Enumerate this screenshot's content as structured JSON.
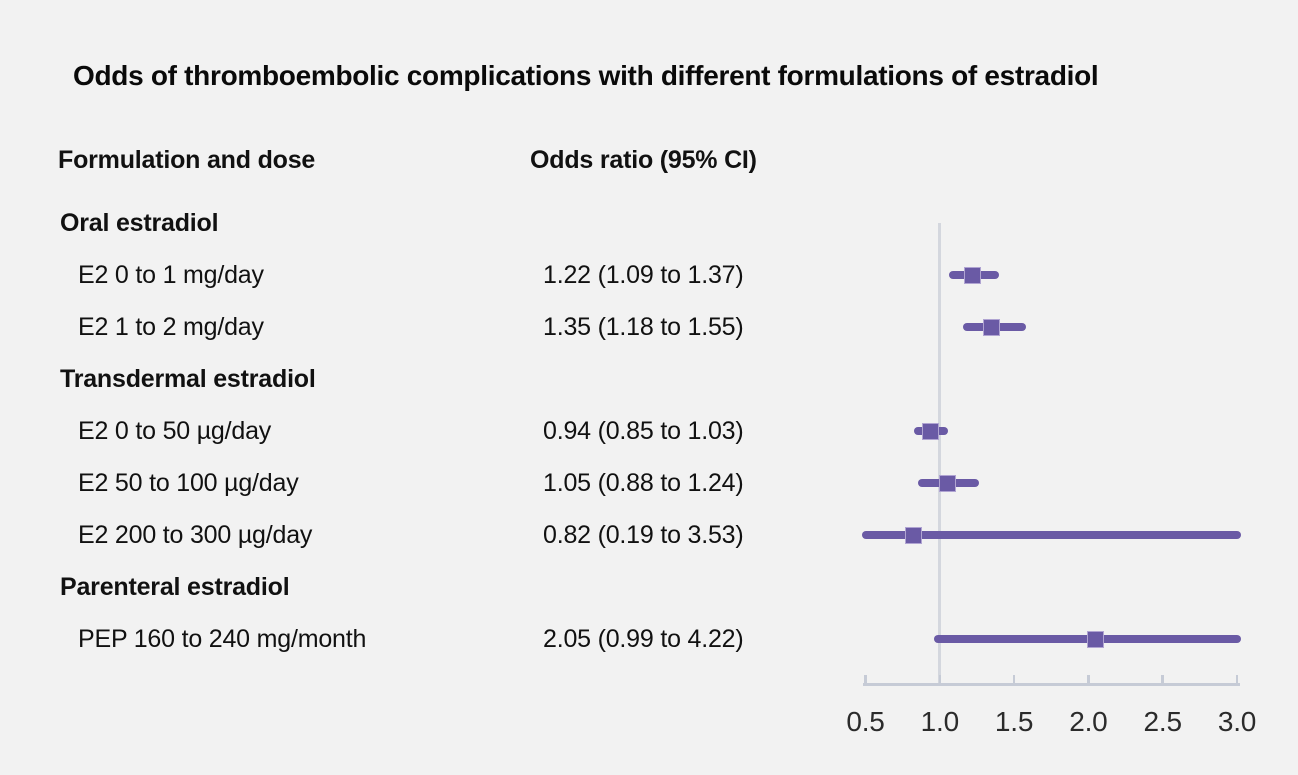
{
  "title": "Odds of thromboembolic complications with different formulations of estradiol",
  "columns": {
    "formulation": "Formulation and dose",
    "odds_ratio": "Odds ratio (95% CI)"
  },
  "colors": {
    "background": "#f2f2f2",
    "text": "#111111",
    "marker": "#6a5aa5",
    "marker_edge": "#b0a4d2",
    "axis_line": "#c6cbd6",
    "reference_line": "#d4d7de",
    "tick_label": "#2b2b2b"
  },
  "chart_data": {
    "type": "scatter",
    "subtype": "forest-plot",
    "title": "Odds of thromboembolic complications with different formulations of estradiol",
    "xlabel": "",
    "ylabel": "",
    "xlim": [
      0.5,
      3.0
    ],
    "x_ticks": [
      "0.5",
      "1.0",
      "1.5",
      "2.0",
      "2.5",
      "3.0"
    ],
    "reference_line_x": 1.0,
    "grid": false,
    "legend": "none",
    "rows": [
      {
        "label": "Oral estradiol",
        "group": true,
        "value": null,
        "or": null,
        "lo": null,
        "hi": null
      },
      {
        "label": "E2 0 to 1 mg/day",
        "group": false,
        "value": "1.22 (1.09 to 1.37)",
        "or": 1.22,
        "lo": 1.09,
        "hi": 1.37
      },
      {
        "label": "E2 1 to 2 mg/day",
        "group": false,
        "value": "1.35 (1.18 to 1.55)",
        "or": 1.35,
        "lo": 1.18,
        "hi": 1.55
      },
      {
        "label": "Transdermal estradiol",
        "group": true,
        "value": null,
        "or": null,
        "lo": null,
        "hi": null
      },
      {
        "label": "E2 0 to 50 µg/day",
        "group": false,
        "value": "0.94 (0.85 to 1.03)",
        "or": 0.94,
        "lo": 0.85,
        "hi": 1.03
      },
      {
        "label": "E2 50 to 100 µg/day",
        "group": false,
        "value": "1.05 (0.88 to 1.24)",
        "or": 1.05,
        "lo": 0.88,
        "hi": 1.24
      },
      {
        "label": "E2 200 to 300 µg/day",
        "group": false,
        "value": "0.82 (0.19 to 3.53)",
        "or": 0.82,
        "lo": 0.19,
        "hi": 3.53
      },
      {
        "label": "Parenteral estradiol",
        "group": true,
        "value": null,
        "or": null,
        "lo": null,
        "hi": null
      },
      {
        "label": "PEP 160 to 240 mg/month",
        "group": false,
        "value": "2.05 (0.99 to 4.22)",
        "or": 2.05,
        "lo": 0.99,
        "hi": 4.22
      }
    ]
  }
}
